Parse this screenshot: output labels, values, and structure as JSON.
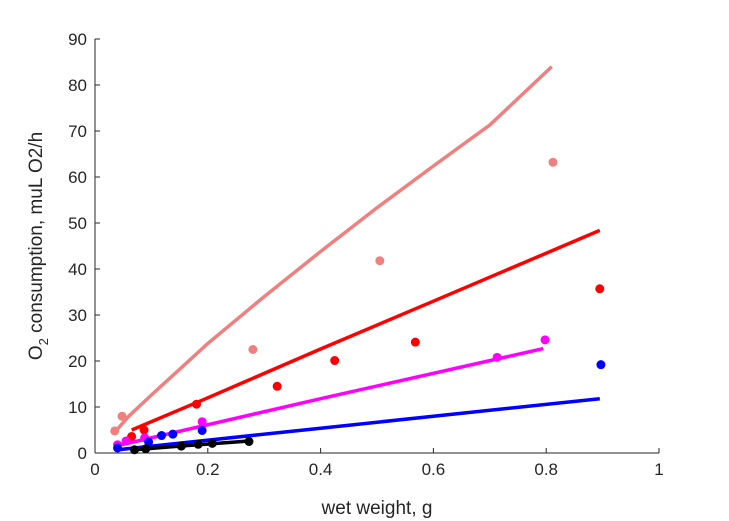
{
  "chart_data": {
    "type": "scatter",
    "xlabel": "wet weight, g",
    "ylabel": {
      "base": "O",
      "sub": "2",
      "rest": " consumption, muL O2/h"
    },
    "xlim": [
      0,
      1
    ],
    "ylim": [
      0,
      90
    ],
    "xticks": [
      0,
      0.2,
      0.4,
      0.6,
      0.8,
      1
    ],
    "xtick_labels": [
      "0",
      "0.2",
      "0.4",
      "0.6",
      "0.8",
      "1"
    ],
    "yticks": [
      0,
      10,
      20,
      30,
      40,
      50,
      60,
      70,
      80,
      90
    ],
    "ytick_labels": [
      "0",
      "10",
      "20",
      "30",
      "40",
      "50",
      "60",
      "70",
      "80",
      "90"
    ],
    "grid": false,
    "series": [
      {
        "color": "#f08080",
        "points": [
          [
            0.035,
            4.8
          ],
          [
            0.048,
            8.0
          ],
          [
            0.28,
            22.5
          ],
          [
            0.505,
            41.8
          ],
          [
            0.812,
            63.2
          ]
        ],
        "line": [
          [
            0.035,
            4.5
          ],
          [
            0.06,
            8.0
          ],
          [
            0.1,
            12.6
          ],
          [
            0.15,
            18.2
          ],
          [
            0.2,
            23.8
          ],
          [
            0.3,
            34.0
          ],
          [
            0.4,
            43.8
          ],
          [
            0.5,
            53.3
          ],
          [
            0.6,
            62.4
          ],
          [
            0.7,
            71.3
          ],
          [
            0.81,
            84.0
          ]
        ]
      },
      {
        "color": "#ff0000",
        "points": [
          [
            0.065,
            3.6
          ],
          [
            0.087,
            5.0
          ],
          [
            0.18,
            10.6
          ],
          [
            0.323,
            14.5
          ],
          [
            0.425,
            20.1
          ],
          [
            0.568,
            24.1
          ],
          [
            0.895,
            35.7
          ]
        ],
        "line": [
          [
            0.065,
            5.0
          ],
          [
            0.2,
            12.0
          ],
          [
            0.4,
            22.6
          ],
          [
            0.6,
            33.0
          ],
          [
            0.895,
            48.4
          ]
        ]
      },
      {
        "color": "#ff00ff",
        "points": [
          [
            0.04,
            1.8
          ],
          [
            0.055,
            2.6
          ],
          [
            0.088,
            3.3
          ],
          [
            0.19,
            6.8
          ],
          [
            0.713,
            20.8
          ],
          [
            0.798,
            24.6
          ]
        ],
        "line": [
          [
            0.04,
            1.6
          ],
          [
            0.4,
            11.8
          ],
          [
            0.795,
            22.7
          ]
        ]
      },
      {
        "color": "#0000ff",
        "points": [
          [
            0.04,
            1.1
          ],
          [
            0.095,
            2.4
          ],
          [
            0.118,
            3.8
          ],
          [
            0.138,
            4.1
          ],
          [
            0.19,
            4.9
          ],
          [
            0.897,
            19.2
          ]
        ],
        "line": [
          [
            0.04,
            0.7
          ],
          [
            0.4,
            5.4
          ],
          [
            0.895,
            11.8
          ]
        ]
      },
      {
        "color": "#000000",
        "points": [
          [
            0.07,
            0.7
          ],
          [
            0.09,
            0.9
          ],
          [
            0.153,
            1.5
          ],
          [
            0.183,
            1.9
          ],
          [
            0.208,
            2.1
          ],
          [
            0.273,
            2.5
          ]
        ],
        "line": [
          [
            0.07,
            0.7
          ],
          [
            0.15,
            1.5
          ],
          [
            0.273,
            2.6
          ]
        ]
      }
    ]
  }
}
